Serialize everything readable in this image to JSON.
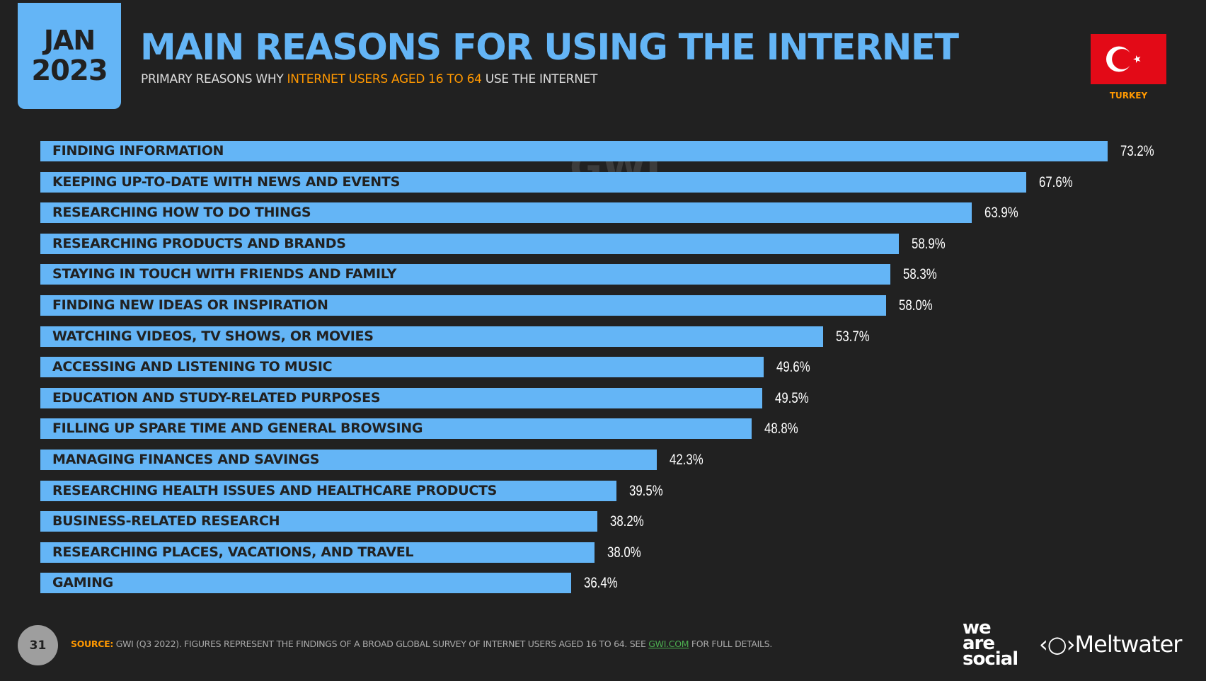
{
  "header": {
    "date_month": "JAN",
    "date_year": "2023",
    "title": "MAIN REASONS FOR USING THE INTERNET",
    "subtitle_pre": "PRIMARY REASONS WHY ",
    "subtitle_highlight": "INTERNET USERS AGED 16 TO 64",
    "subtitle_post": " USE THE INTERNET",
    "country": "TURKEY",
    "watermark": "GWI."
  },
  "colors": {
    "bar": "#64b5f6",
    "accent": "#ff9800",
    "background": "#212121",
    "flag": "#e30a17"
  },
  "chart_data": {
    "type": "bar",
    "orientation": "horizontal",
    "xlim": [
      0,
      73.2
    ],
    "grid": false,
    "categories": [
      "FINDING INFORMATION",
      "KEEPING UP-TO-DATE WITH NEWS AND EVENTS",
      "RESEARCHING HOW TO DO THINGS",
      "RESEARCHING PRODUCTS AND BRANDS",
      "STAYING IN TOUCH WITH FRIENDS AND FAMILY",
      "FINDING NEW IDEAS OR INSPIRATION",
      "WATCHING VIDEOS, TV SHOWS, OR MOVIES",
      "ACCESSING AND LISTENING TO MUSIC",
      "EDUCATION AND STUDY-RELATED PURPOSES",
      "FILLING UP SPARE TIME AND GENERAL BROWSING",
      "MANAGING FINANCES AND SAVINGS",
      "RESEARCHING HEALTH ISSUES AND HEALTHCARE PRODUCTS",
      "BUSINESS-RELATED RESEARCH",
      "RESEARCHING PLACES, VACATIONS, AND TRAVEL",
      "GAMING"
    ],
    "values": [
      73.2,
      67.6,
      63.9,
      58.9,
      58.3,
      58.0,
      53.7,
      49.6,
      49.5,
      48.8,
      42.3,
      39.5,
      38.2,
      38.0,
      36.4
    ],
    "value_labels": [
      "73.2%",
      "67.6%",
      "63.9%",
      "58.9%",
      "58.3%",
      "58.0%",
      "53.7%",
      "49.6%",
      "49.5%",
      "48.8%",
      "42.3%",
      "39.5%",
      "38.2%",
      "38.0%",
      "36.4%"
    ]
  },
  "footer": {
    "page": "31",
    "source_label": "SOURCE:",
    "source_text": " GWI (Q3 2022). FIGURES REPRESENT THE FINDINGS OF A BROAD GLOBAL SURVEY OF INTERNET USERS AGED 16 TO 64. SEE ",
    "source_link": "GWI.COM",
    "source_post": " FOR FULL DETAILS.",
    "logo1": "we are social",
    "logo2": "Meltwater"
  }
}
